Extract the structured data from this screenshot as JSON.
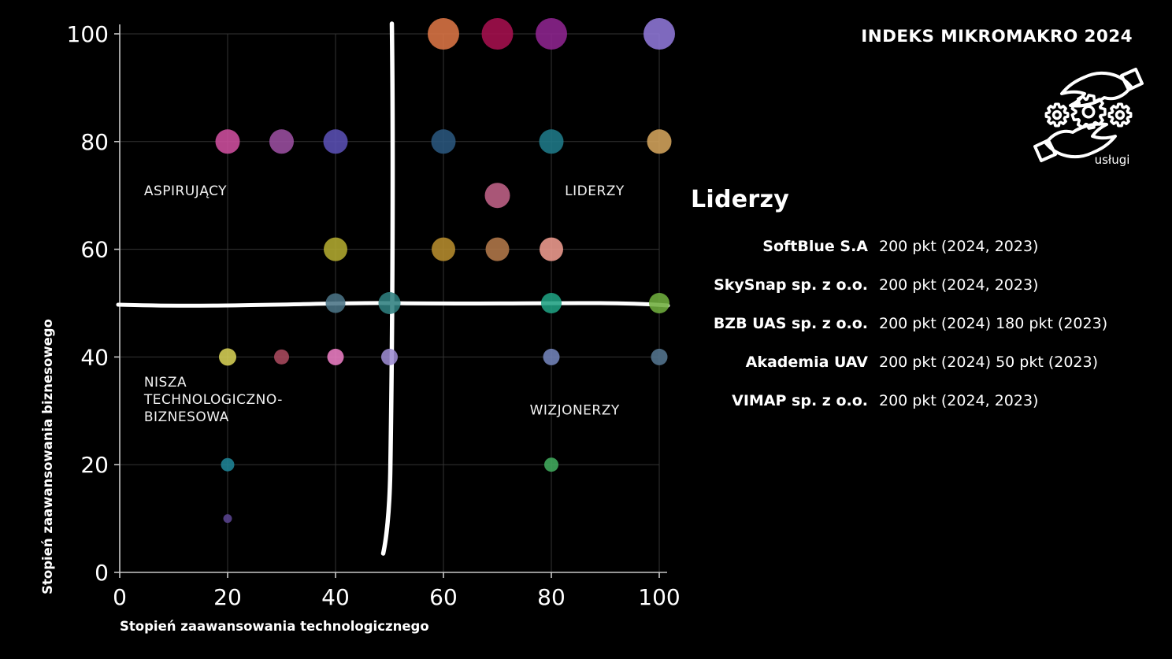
{
  "title": "INDEKS MIKROMAKRO 2024",
  "icon": {
    "name": "hands-and-gears-services-icon",
    "label": "usługi"
  },
  "leaders_panel": {
    "heading": "Liderzy",
    "entries": [
      {
        "name": "SoftBlue S.A",
        "score": "200 pkt (2024, 2023)"
      },
      {
        "name": "SkySnap sp. z o.o.",
        "score": "200 pkt (2024, 2023)"
      },
      {
        "name": "BZB UAS sp. z o.o.",
        "score": "200 pkt (2024) 180 pkt (2023)"
      },
      {
        "name": "Akademia UAV",
        "score": "200 pkt (2024) 50 pkt (2023)"
      },
      {
        "name": "VIMAP sp. z o.o.",
        "score": "200 pkt (2024, 2023)"
      }
    ]
  },
  "chart_data": {
    "type": "scatter",
    "title": "",
    "xlabel": "Stopień zaawansowania technologicznego",
    "ylabel": "Stopień zaawansowania biznesowego",
    "xlim": [
      0,
      100
    ],
    "ylim": [
      0,
      100
    ],
    "xticks": [
      0,
      20,
      40,
      60,
      80,
      100
    ],
    "yticks": [
      0,
      20,
      40,
      60,
      80,
      100
    ],
    "grid": true,
    "grid_color": "#343434",
    "spine_color": "#c8c8c8",
    "quadrant_divider": {
      "x": 50,
      "y": 50,
      "color": "#ffffff",
      "style": "hand-drawn"
    },
    "quadrant_labels": [
      {
        "position": "top-left",
        "x": 4.5,
        "y": 70,
        "lines": [
          "ASPIRUJĄCY"
        ]
      },
      {
        "position": "top-right",
        "x": 82.5,
        "y": 70,
        "lines": [
          "LIDERZY"
        ]
      },
      {
        "position": "bottom-left",
        "x": 4.5,
        "y": 34.5,
        "lines": [
          "NISZA",
          "TECHNOLOGICZNO-",
          "BIZNESOWA"
        ]
      },
      {
        "position": "bottom-right",
        "x": 76,
        "y": 29.3,
        "lines": [
          "WIZJONERZY"
        ]
      }
    ],
    "points": [
      {
        "x": 60,
        "y": 100,
        "r": 20,
        "color": "#DC7545"
      },
      {
        "x": 70,
        "y": 100,
        "r": 20,
        "color": "#A6104E"
      },
      {
        "x": 80,
        "y": 100,
        "r": 20,
        "color": "#8E2490"
      },
      {
        "x": 100,
        "y": 100,
        "r": 20,
        "color": "#9077D8"
      },
      {
        "x": 20,
        "y": 80,
        "r": 15.5,
        "color": "#CE4F9E"
      },
      {
        "x": 30,
        "y": 80,
        "r": 15.5,
        "color": "#9B4FA0"
      },
      {
        "x": 40,
        "y": 80,
        "r": 15.5,
        "color": "#5A50B4"
      },
      {
        "x": 60,
        "y": 80,
        "r": 15.5,
        "color": "#2A567D"
      },
      {
        "x": 80,
        "y": 80,
        "r": 15.5,
        "color": "#1F7A89"
      },
      {
        "x": 100,
        "y": 80,
        "r": 15.5,
        "color": "#D4A45C"
      },
      {
        "x": 70,
        "y": 70,
        "r": 16,
        "color": "#C06287"
      },
      {
        "x": 40,
        "y": 60,
        "r": 15,
        "color": "#B2AA30"
      },
      {
        "x": 60,
        "y": 60,
        "r": 15,
        "color": "#B68C2E"
      },
      {
        "x": 70,
        "y": 60,
        "r": 15,
        "color": "#B3794A"
      },
      {
        "x": 80,
        "y": 60,
        "r": 15,
        "color": "#EF9C8F"
      },
      {
        "x": 40,
        "y": 50,
        "r": 12.5,
        "color": "#4A7385"
      },
      {
        "x": 50,
        "y": 50,
        "r": 14,
        "color": "#2F7F80"
      },
      {
        "x": 80,
        "y": 50,
        "r": 13,
        "color": "#1FA082"
      },
      {
        "x": 100,
        "y": 50,
        "r": 13,
        "color": "#6FAE3E"
      },
      {
        "x": 20,
        "y": 40,
        "r": 11,
        "color": "#D6D055"
      },
      {
        "x": 30,
        "y": 40,
        "r": 9.5,
        "color": "#AA4A5E"
      },
      {
        "x": 40,
        "y": 40,
        "r": 10.5,
        "color": "#EC7DC4"
      },
      {
        "x": 50,
        "y": 40,
        "r": 10.5,
        "color": "#9C8BD0"
      },
      {
        "x": 80,
        "y": 40,
        "r": 10.5,
        "color": "#7384BB"
      },
      {
        "x": 100,
        "y": 40,
        "r": 10.5,
        "color": "#54758F"
      },
      {
        "x": 20,
        "y": 20,
        "r": 8.5,
        "color": "#1F8496"
      },
      {
        "x": 80,
        "y": 20,
        "r": 9,
        "color": "#41AB5D"
      },
      {
        "x": 20,
        "y": 10,
        "r": 5.5,
        "color": "#5A4490"
      }
    ]
  }
}
